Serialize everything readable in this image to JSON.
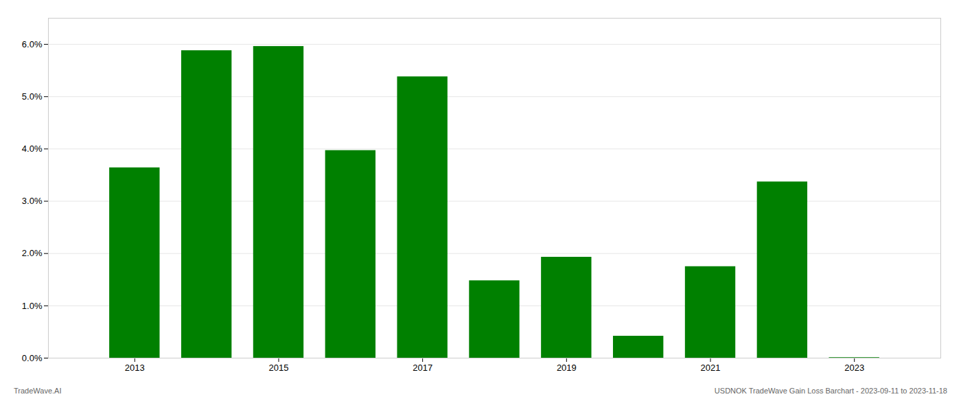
{
  "chart_data": {
    "type": "bar",
    "x": [
      2013,
      2014,
      2015,
      2016,
      2017,
      2018,
      2019,
      2020,
      2021,
      2022,
      2023
    ],
    "values": [
      0.0364,
      0.0588,
      0.0596,
      0.0397,
      0.0538,
      0.0148,
      0.0193,
      0.0042,
      0.0175,
      0.0337,
      0.0001
    ],
    "color": "#008000",
    "xlim": [
      2011.8,
      2024.2
    ],
    "xticks": [
      2013,
      2015,
      2017,
      2019,
      2021,
      2023
    ],
    "ylim": [
      0,
      0.065
    ],
    "yticks": [
      {
        "value": 0,
        "label": "0.0%"
      },
      {
        "value": 0.01,
        "label": "1.0%"
      },
      {
        "value": 0.02,
        "label": "2.0%"
      },
      {
        "value": 0.03,
        "label": "3.0%"
      },
      {
        "value": 0.04,
        "label": "4.0%"
      },
      {
        "value": 0.05,
        "label": "5.0%"
      },
      {
        "value": 0.06,
        "label": "6.0%"
      }
    ],
    "grid": true,
    "annotations": [
      "TradeWave.AI",
      "USDNOK TradeWave Gain Loss Barchart - 2023-09-11 to 2023-11-18"
    ]
  }
}
